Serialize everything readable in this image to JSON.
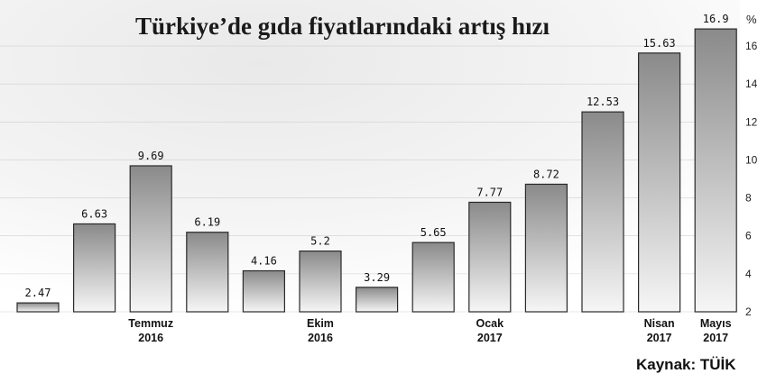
{
  "chart_data": {
    "type": "bar",
    "title": "Türkiye’de gıda fiyatlarındaki artış hızı",
    "unit": "%",
    "source": "Kaynak: TÜİK",
    "ylim": [
      2,
      17
    ],
    "yticks": [
      2,
      4,
      6,
      8,
      10,
      12,
      14,
      16
    ],
    "grid": true,
    "values": [
      2.47,
      6.63,
      9.69,
      6.19,
      4.16,
      5.2,
      3.29,
      5.65,
      7.77,
      8.72,
      12.53,
      15.63,
      16.9
    ],
    "value_labels": [
      "2.47",
      "6.63",
      "9.69",
      "6.19",
      "4.16",
      "5.2",
      "3.29",
      "5.65",
      "7.77",
      "8.72",
      "12.53",
      "15.63",
      "16.9"
    ],
    "x_labels": [
      {
        "bar_index": 2,
        "lines": [
          "Temmuz",
          "2016"
        ]
      },
      {
        "bar_index": 5,
        "lines": [
          "Ekim",
          "2016"
        ]
      },
      {
        "bar_index": 8,
        "lines": [
          "Ocak",
          "2017"
        ]
      },
      {
        "bar_index": 11,
        "lines": [
          "Nisan",
          "2017"
        ]
      },
      {
        "bar_index": 12,
        "lines": [
          "Mayıs",
          "2017"
        ]
      }
    ]
  },
  "colors": {
    "bar_light": "#f6f6f6",
    "bar_dark": "#8a8a8a",
    "bar_stroke": "#2a2a2a",
    "grid": "#d0d0d0"
  }
}
